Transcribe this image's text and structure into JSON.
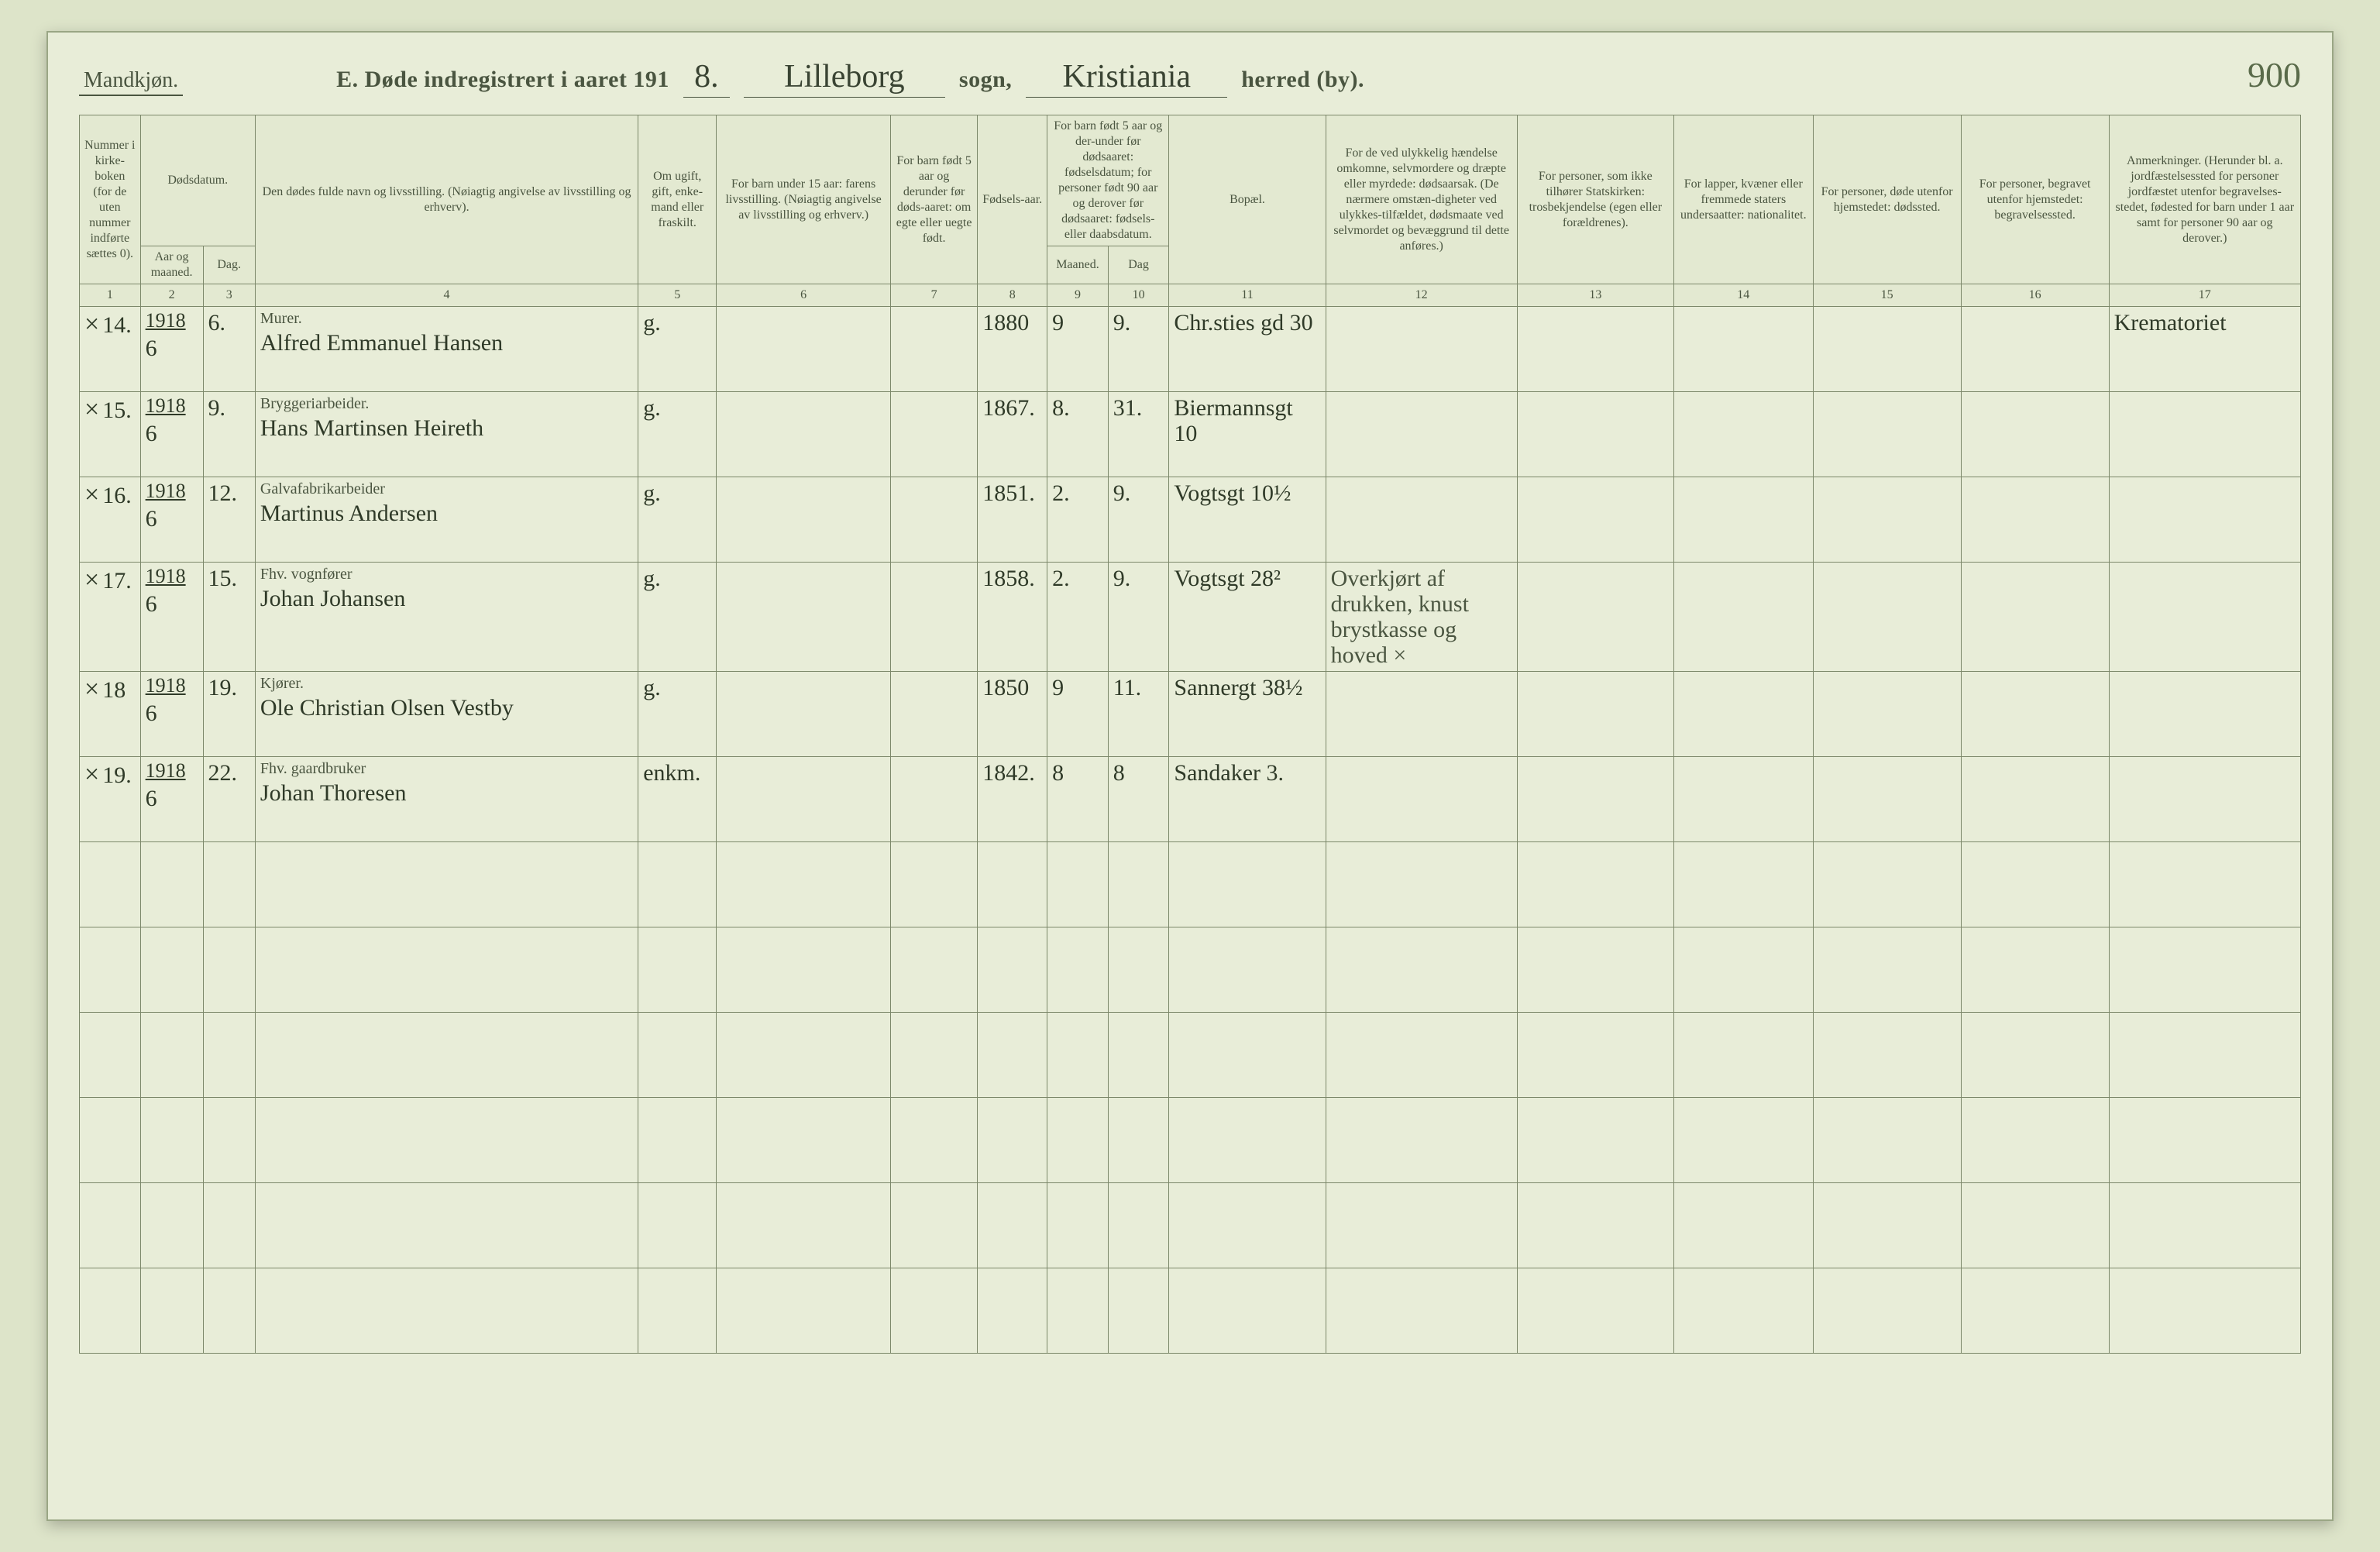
{
  "header": {
    "gender": "Mandkjøn.",
    "title_prefix": "E.  Døde indregistrert i aaret 191",
    "year_digit": "8.",
    "parish": "Lilleborg",
    "sogn_label": "sogn,",
    "district": "Kristiania",
    "herred_label": "herred (by).",
    "page_number": "900"
  },
  "columns": {
    "c1": "Nummer i kirke-boken (for de uten nummer indførte sættes 0).",
    "c2_group": "Dødsdatum.",
    "c2a": "Aar og maaned.",
    "c2b": "Dag.",
    "c4": "Den dødes fulde navn og livsstilling. (Nøiagtig angivelse av livsstilling og erhverv).",
    "c5": "Om ugift, gift, enke-mand eller fraskilt.",
    "c6": "For barn under 15 aar: farens livsstilling. (Nøiagtig angivelse av livsstilling og erhverv.)",
    "c7": "For barn født 5 aar og derunder før døds-aaret: om egte eller uegte født.",
    "c8": "Fødsels-aar.",
    "c9_group": "For barn født 5 aar og der-under før dødsaaret: fødselsdatum; for personer født 90 aar og derover før dødsaaret: fødsels- eller daabsdatum.",
    "c9a": "Maaned.",
    "c9b": "Dag",
    "c11": "Bopæl.",
    "c12": "For de ved ulykkelig hændelse omkomne, selvmordere og dræpte eller myrdede: dødsaarsak. (De nærmere omstæn-digheter ved ulykkes-tilfældet, dødsmaate ved selvmordet og bevæggrund til dette anføres.)",
    "c13": "For personer, som ikke tilhører Statskirken: trosbekjendelse (egen eller forældrenes).",
    "c14": "For lapper, kvæner eller fremmede staters undersaatter: nationalitet.",
    "c15": "For personer, døde utenfor hjemstedet: dødssted.",
    "c16": "For personer, begravet utenfor hjemstedet: begravelsessted.",
    "c17": "Anmerkninger. (Herunder bl. a. jordfæstelsessted for personer jordfæstet utenfor begravelses-stedet, fødested for barn under 1 aar samt for personer 90 aar og derover.)"
  },
  "colnums": [
    "1",
    "2",
    "3",
    "4",
    "5",
    "6",
    "7",
    "8",
    "9",
    "10",
    "11",
    "12",
    "13",
    "14",
    "15",
    "16",
    "17"
  ],
  "rows": [
    {
      "mark": "×",
      "num": "14.",
      "year": "1918",
      "month": "6",
      "day": "6.",
      "occ": "Murer.",
      "name": "Alfred Emmanuel Hansen",
      "civil": "g.",
      "birthyear": "1880",
      "bm": "9",
      "bd": "9.",
      "residence": "Chr.sties gd 30",
      "cause": "",
      "note": "Krematoriet"
    },
    {
      "mark": "×",
      "num": "15.",
      "year": "1918",
      "month": "6",
      "day": "9.",
      "occ": "Bryggeriarbeider.",
      "name": "Hans Martinsen Heireth",
      "civil": "g.",
      "birthyear": "1867.",
      "bm": "8.",
      "bd": "31.",
      "residence": "Biermannsgt 10",
      "cause": "",
      "note": ""
    },
    {
      "mark": "×",
      "num": "16.",
      "year": "1918",
      "month": "6",
      "day": "12.",
      "occ": "Galvafabrikarbeider",
      "name": "Martinus Andersen",
      "civil": "g.",
      "birthyear": "1851.",
      "bm": "2.",
      "bd": "9.",
      "residence": "Vogtsgt 10½",
      "cause": "",
      "note": ""
    },
    {
      "mark": "×",
      "num": "17.",
      "year": "1918",
      "month": "6",
      "day": "15.",
      "occ": "Fhv. vognfører",
      "name": "Johan Johansen",
      "civil": "g.",
      "birthyear": "1858.",
      "bm": "2.",
      "bd": "9.",
      "residence": "Vogtsgt 28²",
      "cause": "Overkjørt af drukken, knust brystkasse og hoved ×",
      "note": ""
    },
    {
      "mark": "×",
      "num": "18",
      "year": "1918",
      "month": "6",
      "day": "19.",
      "occ": "Kjører.",
      "name": "Ole Christian Olsen Vestby",
      "civil": "g.",
      "birthyear": "1850",
      "bm": "9",
      "bd": "11.",
      "residence": "Sannergt 38½",
      "cause": "",
      "note": ""
    },
    {
      "mark": "×",
      "num": "19.",
      "year": "1918",
      "month": "6",
      "day": "22.",
      "occ": "Fhv. gaardbruker",
      "name": "Johan Thoresen",
      "civil": "enkm.",
      "birthyear": "1842.",
      "bm": "8",
      "bd": "8",
      "residence": "Sandaker 3.",
      "cause": "",
      "note": ""
    }
  ],
  "style": {
    "page_bg": "#e8edd8",
    "outer_bg": "#dde4c9",
    "rule_color": "#7c886a",
    "text_color": "#4a5540",
    "hand_color": "#2f3a28",
    "header_fontsize": 30,
    "cell_fontsize": 30,
    "th_fontsize": 16
  }
}
